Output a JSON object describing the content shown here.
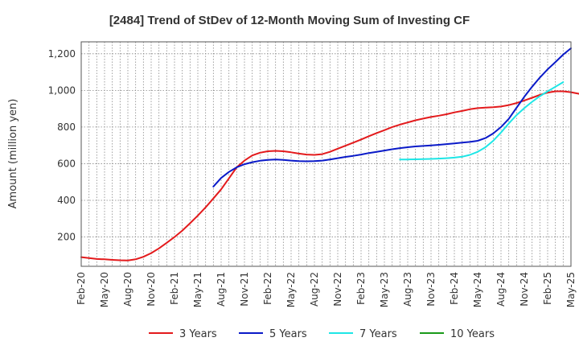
{
  "chart_data": {
    "type": "line",
    "title": "[2484]  Trend of StDev of 12-Month Moving Sum of Investing CF",
    "ylabel": "Amount (million yen)",
    "xlabel": "",
    "ylim": [
      40,
      1265
    ],
    "yticks": [
      200,
      400,
      600,
      800,
      1000,
      1200
    ],
    "ytick_labels": [
      "200",
      "400",
      "600",
      "800",
      "1,000",
      "1,200"
    ],
    "x_start": "2020-02",
    "xticks": [
      "Feb-20",
      "May-20",
      "Aug-20",
      "Nov-20",
      "Feb-21",
      "May-21",
      "Aug-21",
      "Nov-21",
      "Feb-22",
      "May-22",
      "Aug-22",
      "Nov-22",
      "Feb-23",
      "May-23",
      "Aug-23",
      "Nov-23",
      "Feb-24",
      "May-24",
      "Aug-24",
      "Nov-24",
      "Feb-25",
      "May-25"
    ],
    "grid": true,
    "legend_position": "bottom",
    "series": [
      {
        "name": "3 Years",
        "color": "#e31a1c",
        "start": "Feb-20",
        "values": [
          90,
          85,
          80,
          78,
          75,
          73,
          72,
          78,
          92,
          112,
          138,
          168,
          200,
          235,
          275,
          317,
          362,
          410,
          460,
          520,
          580,
          617,
          645,
          660,
          668,
          670,
          668,
          662,
          655,
          650,
          648,
          652,
          665,
          682,
          698,
          715,
          732,
          750,
          767,
          783,
          800,
          813,
          825,
          837,
          846,
          855,
          862,
          870,
          880,
          888,
          897,
          903,
          906,
          908,
          912,
          920,
          931,
          945,
          960,
          975,
          988,
          995,
          995,
          990,
          982,
          972,
          962
        ]
      },
      {
        "name": "5 Years",
        "color": "#0a1ac8",
        "start": "Jul-21",
        "values": [
          475,
          522,
          555,
          580,
          597,
          608,
          616,
          621,
          623,
          621,
          617,
          614,
          613,
          614,
          617,
          623,
          630,
          637,
          643,
          650,
          658,
          665,
          672,
          679,
          685,
          690,
          694,
          697,
          700,
          703,
          707,
          711,
          715,
          719,
          725,
          740,
          765,
          800,
          845,
          905,
          965,
          1020,
          1070,
          1115,
          1155,
          1195,
          1230
        ]
      },
      {
        "name": "7 Years",
        "color": "#1ee6e6",
        "start": "Jul-23",
        "values": [
          623,
          623,
          624,
          625,
          626,
          628,
          630,
          633,
          638,
          648,
          665,
          690,
          725,
          770,
          820,
          865,
          903,
          938,
          968,
          995,
          1020,
          1045
        ]
      },
      {
        "name": "10 Years",
        "color": "#1a9a1a",
        "start": "Feb-25",
        "values": []
      }
    ]
  }
}
